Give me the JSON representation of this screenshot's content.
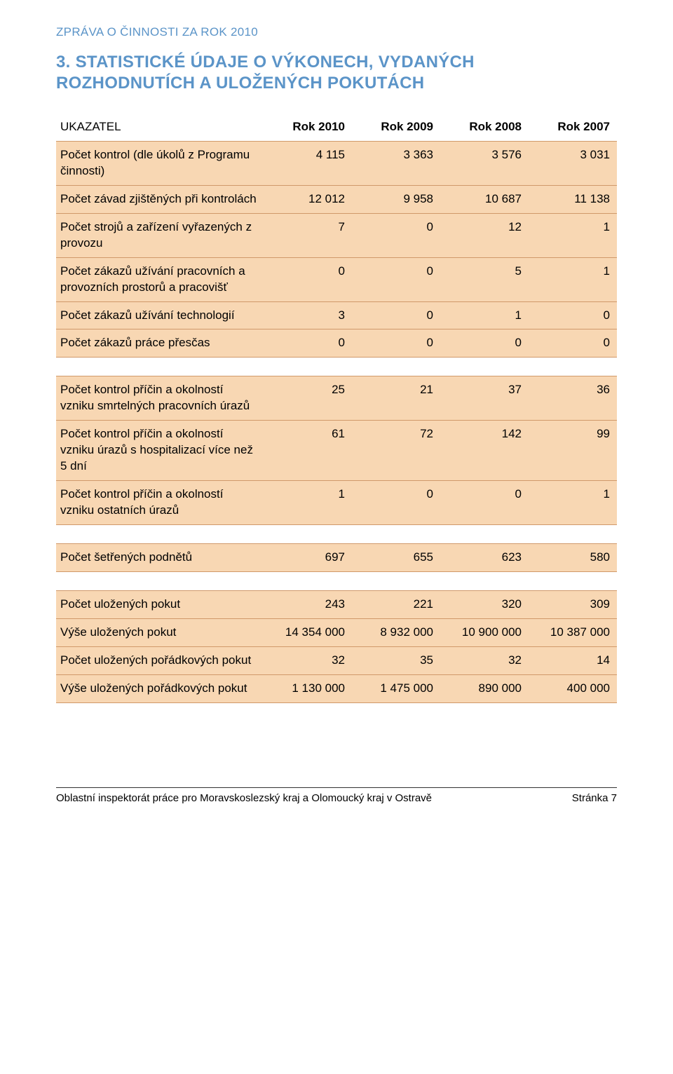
{
  "colors": {
    "accent_blue": "#5b94c8",
    "peach_fill": "#f8d7b3",
    "peach_border": "#d0996a",
    "text": "#000000",
    "background": "#ffffff"
  },
  "typography": {
    "body_fontsize_pt": 12.5,
    "heading_fontsize_pt": 18,
    "font_family": "Arial"
  },
  "page": {
    "report_title": "ZPRÁVA O ČINNOSTI ZA ROK 2010",
    "section_heading": "3. STATISTICKÉ ÚDAJE O VÝKONECH, VYDANÝCH ROZHODNUTÍCH A ULOŽENÝCH POKUTÁCH"
  },
  "table": {
    "header": {
      "label": "UKAZATEL",
      "cols": [
        "Rok 2010",
        "Rok 2009",
        "Rok 2008",
        "Rok 2007"
      ]
    },
    "groups": [
      {
        "rows": [
          {
            "label": "Počet kontrol (dle úkolů z Programu činnosti)",
            "values": [
              "4 115",
              "3 363",
              "3 576",
              "3 031"
            ]
          },
          {
            "label": "Počet závad zjištěných při kontrolách",
            "values": [
              "12 012",
              "9 958",
              "10 687",
              "11 138"
            ]
          },
          {
            "label": "Počet strojů a zařízení vyřazených z provozu",
            "values": [
              "7",
              "0",
              "12",
              "1"
            ]
          },
          {
            "label": "Počet zákazů užívání pracovních a provozních prostorů a pracovišť",
            "values": [
              "0",
              "0",
              "5",
              "1"
            ]
          },
          {
            "label": "Počet zákazů užívání technologií",
            "values": [
              "3",
              "0",
              "1",
              "0"
            ]
          },
          {
            "label": "Počet zákazů práce přesčas",
            "values": [
              "0",
              "0",
              "0",
              "0"
            ]
          }
        ]
      },
      {
        "rows": [
          {
            "label": "Počet kontrol příčin a okolností vzniku smrtelných pracovních úrazů",
            "values": [
              "25",
              "21",
              "37",
              "36"
            ]
          },
          {
            "label": "Počet kontrol příčin a okolností vzniku úrazů s hospitalizací více než 5 dní",
            "values": [
              "61",
              "72",
              "142",
              "99"
            ]
          },
          {
            "label": "Počet kontrol příčin a okolností vzniku ostatních úrazů",
            "values": [
              "1",
              "0",
              "0",
              "1"
            ]
          }
        ]
      },
      {
        "rows": [
          {
            "label": "Počet šetřených podnětů",
            "values": [
              "697",
              "655",
              "623",
              "580"
            ]
          }
        ]
      },
      {
        "rows": [
          {
            "label": "Počet uložených pokut",
            "values": [
              "243",
              "221",
              "320",
              "309"
            ]
          },
          {
            "label": "Výše uložených pokut",
            "values": [
              "14 354 000",
              "8 932 000",
              "10 900 000",
              "10 387 000"
            ]
          },
          {
            "label": "Počet uložených pořádkových pokut",
            "values": [
              "32",
              "35",
              "32",
              "14"
            ]
          },
          {
            "label": "Výše uložených pořádkových pokut",
            "values": [
              "1 130 000",
              "1 475 000",
              "890 000",
              "400 000"
            ]
          }
        ]
      }
    ]
  },
  "footer": {
    "left": "Oblastní inspektorát práce pro Moravskoslezský kraj a Olomoucký kraj v Ostravě",
    "right": "Stránka 7"
  }
}
